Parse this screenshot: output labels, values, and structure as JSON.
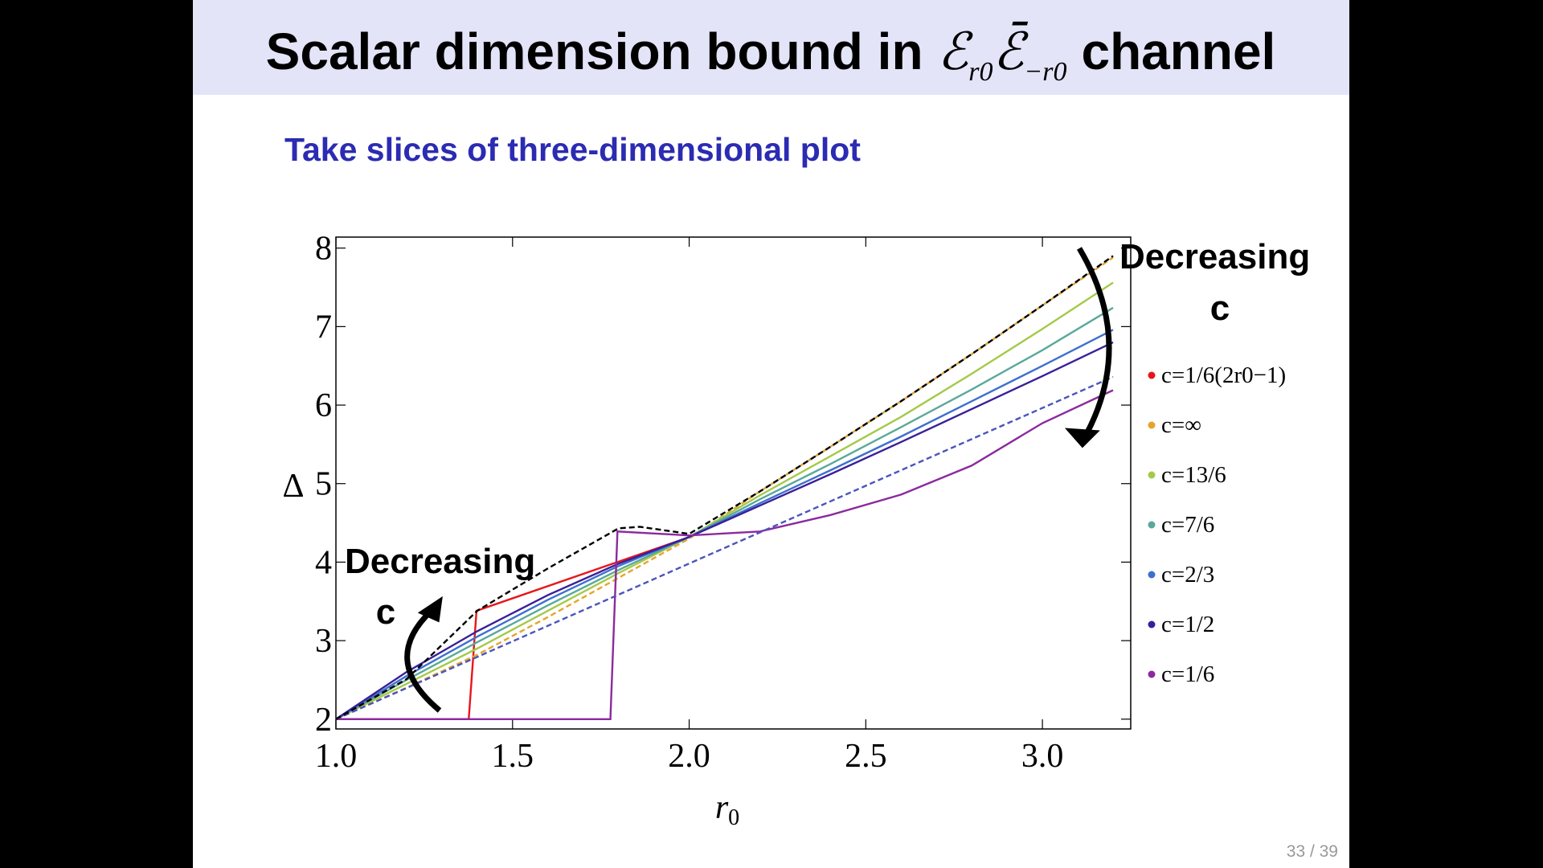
{
  "slide": {
    "title": {
      "text": "Scalar dimension bound in",
      "math": [
        {
          "base": "ℰ",
          "sub": "r0"
        },
        {
          "base": "ℰ̄",
          "sub": "−r0"
        }
      ],
      "end": "channel"
    },
    "subtitle": "Take slices of three-dimensional plot",
    "page": "33 / 39"
  },
  "chart_data": {
    "type": "line",
    "xlabel": {
      "base": "r",
      "sub": "0"
    },
    "ylabel": "Δ",
    "xlim": [
      1.0,
      3.25
    ],
    "ylim": [
      1.875,
      8.14
    ],
    "xticks": [
      {
        "value": 1,
        "label": "1.0"
      },
      1.5,
      {
        "value": 2,
        "label": "2.0"
      },
      2.5,
      {
        "value": 3,
        "label": "3.0"
      }
    ],
    "yticks": [
      2,
      3,
      4,
      5,
      6,
      7,
      8
    ],
    "annotations": [
      {
        "text": "Decreasing"
      },
      {
        "text": "c"
      },
      {
        "text": "Decreasing"
      },
      {
        "text": "c"
      }
    ],
    "series": [
      {
        "name": "c=1/6(2r0−1)",
        "color": "#e8161b",
        "dashed": false,
        "x": [
          1.0,
          1.376,
          1.398,
          2.008
        ],
        "values": [
          2,
          2,
          3.38,
          4.33
        ]
      },
      {
        "name": "c=∞",
        "color": "#e5a52b",
        "dashed": true,
        "x": [
          1.0,
          1.2,
          1.4,
          1.6,
          1.8,
          2.0,
          2.2,
          2.4,
          2.6,
          2.8,
          3.0,
          3.2
        ],
        "values": [
          2,
          2.4,
          2.82,
          3.3,
          3.8,
          4.3,
          4.9,
          5.47,
          6.05,
          6.65,
          7.27,
          7.88
        ]
      },
      {
        "name": "c=13/6",
        "color": "#a5c94a",
        "dashed": false,
        "x": [
          1.0,
          1.2,
          1.4,
          1.6,
          1.8,
          2.0,
          2.2,
          2.4,
          2.6,
          2.8,
          3.0,
          3.2
        ],
        "values": [
          2,
          2.45,
          2.9,
          3.38,
          3.86,
          4.32,
          4.85,
          5.35,
          5.85,
          6.4,
          6.97,
          7.56
        ]
      },
      {
        "name": "c=7/6",
        "color": "#5aa99a",
        "dashed": false,
        "x": [
          1.0,
          1.2,
          1.4,
          1.6,
          1.8,
          2.0,
          2.2,
          2.4,
          2.6,
          2.8,
          3.0,
          3.2
        ],
        "values": [
          2,
          2.5,
          2.98,
          3.45,
          3.9,
          4.32,
          4.8,
          5.25,
          5.72,
          6.2,
          6.7,
          7.24
        ]
      },
      {
        "name": "c=2/3",
        "color": "#3e6fcf",
        "dashed": false,
        "x": [
          1.0,
          1.2,
          1.4,
          1.6,
          1.8,
          2.0,
          2.2,
          2.4,
          2.6,
          2.8,
          3.0,
          3.2
        ],
        "values": [
          2,
          2.55,
          3.05,
          3.52,
          3.95,
          4.32,
          4.75,
          5.17,
          5.6,
          6.05,
          6.5,
          6.96
        ]
      },
      {
        "name": "c=1/2",
        "color": "#3a1f9a",
        "dashed": false,
        "x": [
          1.0,
          1.2,
          1.4,
          1.6,
          1.8,
          2.0,
          2.2,
          2.4,
          2.6,
          2.8,
          3.0,
          3.2
        ],
        "values": [
          2,
          2.6,
          3.12,
          3.58,
          3.98,
          4.32,
          4.72,
          5.12,
          5.53,
          5.95,
          6.37,
          6.8
        ]
      },
      {
        "name": "c=1/6",
        "color": "#8b2a9e",
        "dashed": false,
        "x": [
          1.0,
          1.777,
          1.797,
          2.0,
          2.2,
          2.4,
          2.6,
          2.8,
          3.0,
          3.2
        ],
        "values": [
          2,
          2,
          4.39,
          4.34,
          4.39,
          4.6,
          4.86,
          5.23,
          5.77,
          6.19
        ]
      },
      {
        "color": "#4a55bb",
        "dashed": true,
        "x": [
          1.0,
          3.2
        ],
        "values": [
          2,
          6.36
        ]
      },
      {
        "color": "#000000",
        "dashed": true,
        "x": [
          1.0,
          1.2,
          1.4,
          1.6,
          1.8,
          1.86,
          2.0,
          2.2,
          2.4,
          2.6,
          2.8,
          3.0,
          3.2
        ],
        "values": [
          2,
          2.51,
          3.38,
          3.92,
          4.43,
          4.45,
          4.36,
          4.9,
          5.47,
          6.05,
          6.65,
          7.27,
          7.9
        ]
      }
    ]
  }
}
